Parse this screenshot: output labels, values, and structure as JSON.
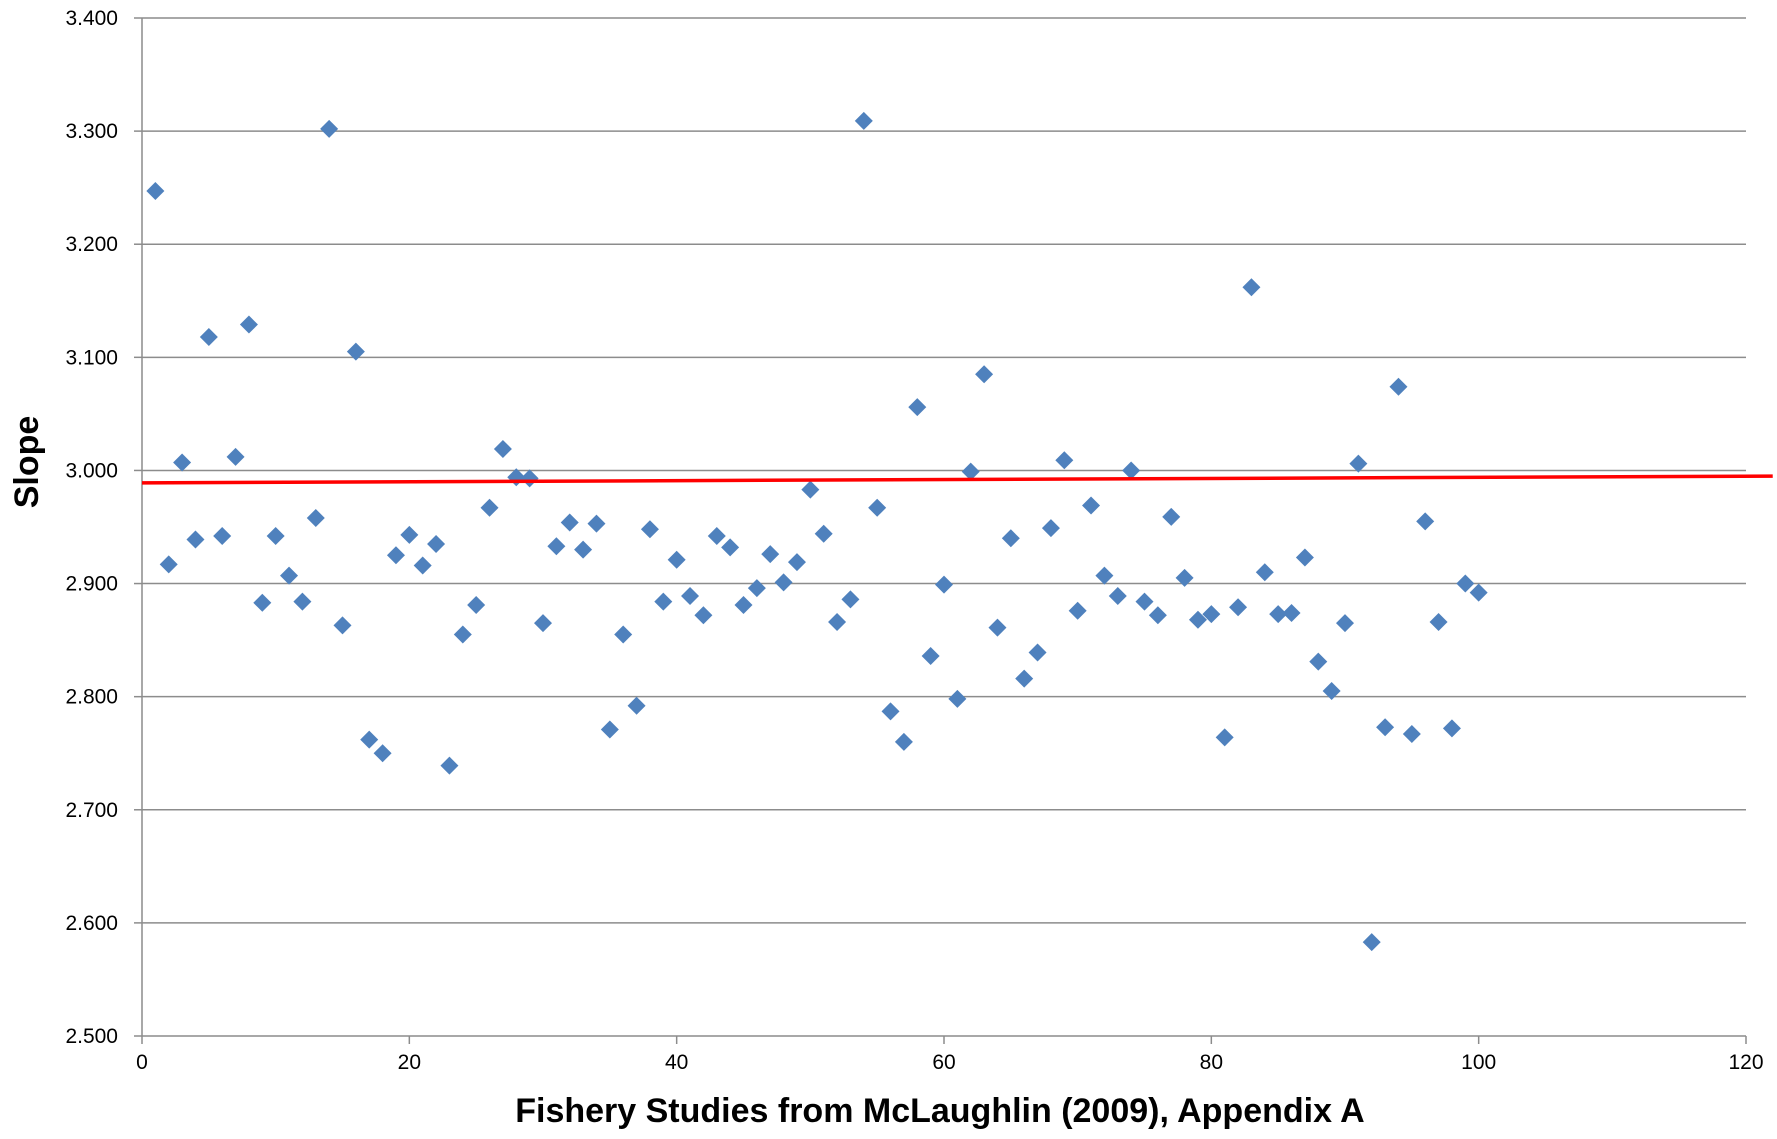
{
  "chart_data": {
    "type": "scatter",
    "title": "",
    "xlabel": "Fishery Studies from McLaughlin (2009), Appendix A",
    "ylabel": "Slope",
    "xlim": [
      0,
      120
    ],
    "ylim": [
      2.5,
      3.4
    ],
    "x_ticks": [
      0,
      20,
      40,
      60,
      80,
      100,
      120
    ],
    "x_tick_labels": [
      "0",
      "20",
      "40",
      "60",
      "80",
      "100",
      "120"
    ],
    "y_ticks": [
      2.5,
      2.6,
      2.7,
      2.8,
      2.9,
      3.0,
      3.1,
      3.2,
      3.3,
      3.4
    ],
    "y_tick_labels": [
      "2.500",
      "2.600",
      "2.700",
      "2.800",
      "2.900",
      "3.000",
      "3.100",
      "3.200",
      "3.300",
      "3.400"
    ],
    "grid": "horizontal",
    "legend": "none",
    "marker": "diamond",
    "series": [
      {
        "color": "#4f81bd",
        "points": [
          [
            1,
            3.247
          ],
          [
            2,
            2.917
          ],
          [
            3,
            3.007
          ],
          [
            4,
            2.939
          ],
          [
            5,
            3.118
          ],
          [
            6,
            2.942
          ],
          [
            7,
            3.012
          ],
          [
            8,
            3.129
          ],
          [
            9,
            2.883
          ],
          [
            10,
            2.942
          ],
          [
            11,
            2.907
          ],
          [
            12,
            2.884
          ],
          [
            13,
            2.958
          ],
          [
            14,
            3.302
          ],
          [
            15,
            2.863
          ],
          [
            16,
            3.105
          ],
          [
            17,
            2.762
          ],
          [
            18,
            2.75
          ],
          [
            19,
            2.925
          ],
          [
            20,
            2.943
          ],
          [
            21,
            2.916
          ],
          [
            22,
            2.935
          ],
          [
            23,
            2.739
          ],
          [
            24,
            2.855
          ],
          [
            25,
            2.881
          ],
          [
            26,
            2.967
          ],
          [
            27,
            3.019
          ],
          [
            28,
            2.994
          ],
          [
            29,
            2.993
          ],
          [
            30,
            2.865
          ],
          [
            31,
            2.933
          ],
          [
            32,
            2.954
          ],
          [
            33,
            2.93
          ],
          [
            34,
            2.953
          ],
          [
            35,
            2.771
          ],
          [
            36,
            2.855
          ],
          [
            37,
            2.792
          ],
          [
            38,
            2.948
          ],
          [
            39,
            2.884
          ],
          [
            40,
            2.921
          ],
          [
            41,
            2.889
          ],
          [
            42,
            2.872
          ],
          [
            43,
            2.942
          ],
          [
            44,
            2.932
          ],
          [
            45,
            2.881
          ],
          [
            46,
            2.896
          ],
          [
            47,
            2.926
          ],
          [
            48,
            2.901
          ],
          [
            49,
            2.919
          ],
          [
            50,
            2.983
          ],
          [
            51,
            2.944
          ],
          [
            52,
            2.866
          ],
          [
            53,
            2.886
          ],
          [
            54,
            3.309
          ],
          [
            55,
            2.967
          ],
          [
            56,
            2.787
          ],
          [
            57,
            2.76
          ],
          [
            58,
            3.056
          ],
          [
            59,
            2.836
          ],
          [
            60,
            2.899
          ],
          [
            61,
            2.798
          ],
          [
            62,
            2.999
          ],
          [
            63,
            3.085
          ],
          [
            64,
            2.861
          ],
          [
            65,
            2.94
          ],
          [
            66,
            2.816
          ],
          [
            67,
            2.839
          ],
          [
            68,
            2.949
          ],
          [
            69,
            3.009
          ],
          [
            70,
            2.876
          ],
          [
            71,
            2.969
          ],
          [
            72,
            2.907
          ],
          [
            73,
            2.889
          ],
          [
            74,
            3.0
          ],
          [
            75,
            2.884
          ],
          [
            76,
            2.872
          ],
          [
            77,
            2.959
          ],
          [
            78,
            2.905
          ],
          [
            79,
            2.868
          ],
          [
            80,
            2.873
          ],
          [
            81,
            2.764
          ],
          [
            82,
            2.879
          ],
          [
            83,
            3.162
          ],
          [
            84,
            2.91
          ],
          [
            85,
            2.873
          ],
          [
            86,
            2.874
          ],
          [
            87,
            2.923
          ],
          [
            88,
            2.831
          ],
          [
            89,
            2.805
          ],
          [
            90,
            2.865
          ],
          [
            91,
            3.006
          ],
          [
            92,
            2.583
          ],
          [
            93,
            2.773
          ],
          [
            94,
            3.074
          ],
          [
            95,
            2.767
          ],
          [
            96,
            2.955
          ],
          [
            97,
            2.866
          ],
          [
            98,
            2.772
          ],
          [
            99,
            2.9
          ],
          [
            100,
            2.892
          ]
        ]
      }
    ],
    "reference_line": {
      "color": "#ff0000",
      "x": [
        0,
        122
      ],
      "y": [
        2.989,
        2.995
      ]
    }
  }
}
